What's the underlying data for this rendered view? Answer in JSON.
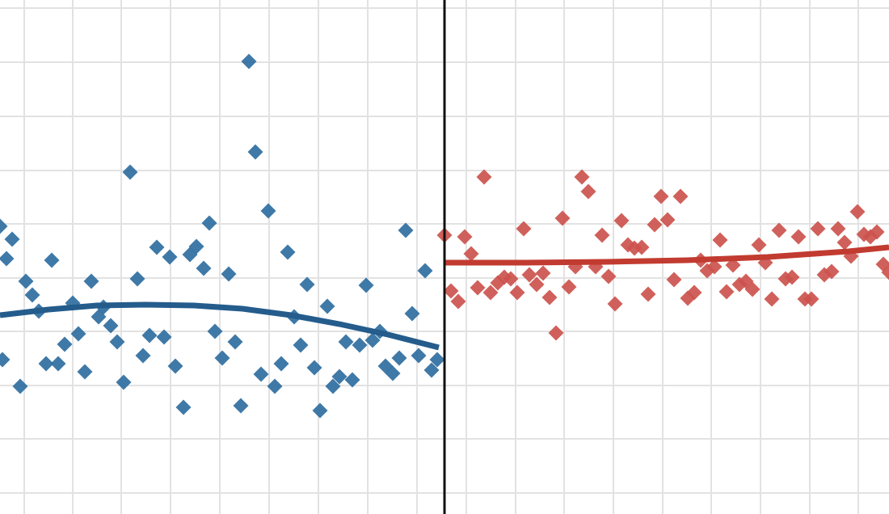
{
  "chart_data": {
    "type": "scatter",
    "xlim": [
      0,
      1100
    ],
    "ylim": [
      636,
      0
    ],
    "xticks": [
      30,
      90,
      150,
      211,
      272,
      333,
      394,
      455,
      516,
      577,
      638,
      698,
      759,
      820,
      880,
      941,
      1002,
      1062
    ],
    "yticks": [
      10,
      77,
      144,
      211,
      277,
      344,
      410,
      477,
      543,
      610
    ],
    "grid": true,
    "grid_color": "#e2e2e2",
    "cutoff": 550,
    "cutoff_color": "#111111",
    "series": [
      {
        "mode": "markers",
        "color": "#2f6e9f",
        "x": [
          0,
          15,
          8,
          64,
          32,
          40,
          48,
          113,
          170,
          128,
          122,
          90,
          137,
          97,
          80,
          145,
          57,
          72,
          105,
          25,
          3,
          177,
          185,
          203,
          217,
          153,
          161,
          194,
          210,
          235,
          243,
          252,
          259,
          283,
          266,
          275,
          291,
          227,
          298,
          308,
          316,
          332,
          356,
          380,
          364,
          372,
          405,
          453,
          348,
          323,
          340,
          389,
          396,
          412,
          420,
          436,
          428,
          445,
          461,
          470,
          477,
          486,
          494,
          502,
          510,
          518,
          526,
          534,
          541
        ],
        "values": [
          280,
          296,
          320,
          322,
          348,
          365,
          385,
          348,
          345,
          380,
          392,
          375,
          403,
          413,
          426,
          423,
          450,
          450,
          460,
          478,
          445,
          440,
          415,
          417,
          453,
          473,
          213,
          306,
          318,
          315,
          305,
          332,
          276,
          339,
          410,
          443,
          423,
          504,
          502,
          76,
          188,
          261,
          312,
          352,
          392,
          427,
          379,
          353,
          450,
          463,
          478,
          455,
          508,
          478,
          466,
          470,
          423,
          427,
          421,
          410,
          453,
          462,
          443,
          285,
          388,
          440,
          335,
          458,
          445
        ]
      },
      {
        "mode": "markers",
        "color": "#cc524d",
        "x": [
          550,
          575,
          583,
          599,
          558,
          567,
          591,
          607,
          616,
          624,
          632,
          640,
          648,
          655,
          664,
          672,
          680,
          688,
          696,
          704,
          712,
          720,
          728,
          737,
          745,
          753,
          761,
          769,
          777,
          785,
          794,
          802,
          810,
          818,
          826,
          834,
          842,
          851,
          859,
          867,
          875,
          884,
          891,
          899,
          907,
          915,
          923,
          931,
          939,
          947,
          955,
          964,
          972,
          980,
          988,
          996,
          1004,
          1012,
          1020,
          1029,
          1037,
          1045,
          1053,
          1061,
          1069,
          1077,
          1085,
          1093,
          1100
        ],
        "values": [
          291,
          293,
          314,
          219,
          360,
          373,
          356,
          362,
          350,
          343,
          345,
          362,
          283,
          340,
          352,
          338,
          368,
          412,
          270,
          355,
          330,
          219,
          237,
          330,
          291,
          342,
          376,
          273,
          303,
          307,
          306,
          364,
          278,
          243,
          272,
          346,
          243,
          369,
          362,
          322,
          335,
          330,
          297,
          361,
          328,
          352,
          348,
          358,
          303,
          325,
          370,
          285,
          345,
          343,
          293,
          370,
          370,
          283,
          340,
          336,
          283,
          300,
          317,
          262,
          290,
          293,
          287,
          327,
          337
        ]
      },
      {
        "mode": "line",
        "color": "#245c8c",
        "x": [
          0,
          60,
          120,
          180,
          240,
          300,
          360,
          420,
          480,
          543
        ],
        "values": [
          390,
          383,
          378,
          377,
          378,
          382,
          390,
          401,
          414,
          430
        ]
      },
      {
        "mode": "line",
        "color": "#c23b30",
        "x": [
          550,
          650,
          750,
          850,
          950,
          1050,
          1100
        ],
        "values": [
          325,
          325,
          324,
          322,
          318,
          311,
          306
        ]
      }
    ]
  }
}
